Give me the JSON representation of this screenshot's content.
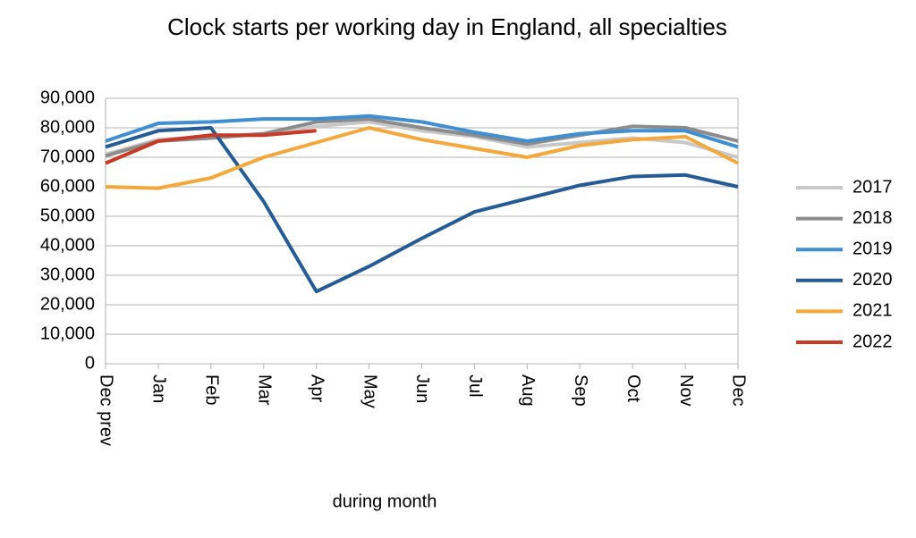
{
  "chart_data": {
    "type": "line",
    "title": "Clock starts per working day in England, all specialties",
    "x_label": "during  month",
    "categories": [
      "Dec prev",
      "Jan",
      "Feb",
      "Mar",
      "Apr",
      "May",
      "Jun",
      "Jul",
      "Aug",
      "Sep",
      "Oct",
      "Nov",
      "Dec"
    ],
    "series": [
      {
        "name": "2017",
        "color": "#c8c8c8",
        "values": [
          71000,
          76000,
          77000,
          78000,
          80500,
          82000,
          79000,
          77000,
          73500,
          75000,
          76500,
          75000,
          70000
        ]
      },
      {
        "name": "2018",
        "color": "#8c8c8c",
        "values": [
          70500,
          75500,
          76500,
          78000,
          82000,
          83000,
          80000,
          77500,
          74500,
          77500,
          80500,
          80000,
          75500
        ]
      },
      {
        "name": "2019",
        "color": "#3f8fd2",
        "values": [
          75500,
          81500,
          82000,
          83000,
          83000,
          84000,
          82000,
          78500,
          75500,
          78000,
          79000,
          79000,
          73500
        ]
      },
      {
        "name": "2020",
        "color": "#255c96",
        "values": [
          73500,
          79000,
          80000,
          55000,
          24500,
          33000,
          42500,
          51500,
          56000,
          60500,
          63500,
          64000,
          60000
        ]
      },
      {
        "name": "2021",
        "color": "#f4a83c",
        "values": [
          60000,
          59500,
          63000,
          70000,
          75000,
          80000,
          76000,
          73000,
          70000,
          74000,
          76000,
          77000,
          68000
        ]
      },
      {
        "name": "2022",
        "color": "#c83a26",
        "values": [
          68000,
          75500,
          77500,
          77500,
          79000,
          null,
          null,
          null,
          null,
          null,
          null,
          null,
          null
        ]
      }
    ],
    "ylim": [
      0,
      90000
    ],
    "yticks": [
      0,
      {
        "value": 10000,
        "label": "10,000"
      },
      {
        "value": 20000,
        "label": "20,000"
      },
      {
        "value": 30000,
        "label": "30,000"
      },
      {
        "value": 40000,
        "label": "40,000"
      },
      {
        "value": 50000,
        "label": "50,000"
      },
      {
        "value": 60000,
        "label": "60,000"
      },
      {
        "value": 70000,
        "label": "70,000"
      },
      {
        "value": 80000,
        "label": "80,000"
      },
      {
        "value": 90000,
        "label": "90,000"
      }
    ],
    "grid": true,
    "legend": "right"
  }
}
